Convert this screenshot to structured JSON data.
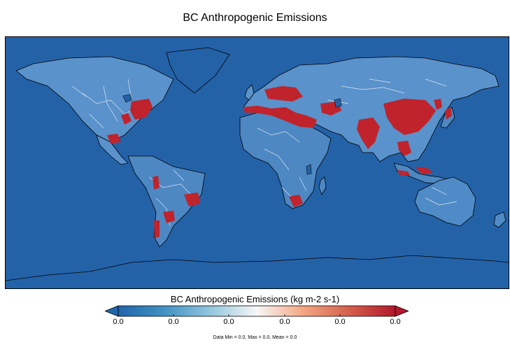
{
  "title": "BC Anthropogenic Emissions",
  "colorbar": {
    "label": "BC Anthropogenic Emissions (kg m-2 s-1)",
    "tick_labels": [
      "0.0",
      "0.0",
      "0.0",
      "0.0",
      "0.0",
      "0.0"
    ],
    "colormap": [
      "#2166ac",
      "#4393c3",
      "#92c5de",
      "#f7f7f7",
      "#f4a582",
      "#d6604d",
      "#b2182b"
    ],
    "extend_low_color": "#2166ac",
    "extend_high_color": "#b2182b"
  },
  "stats": "Data Min = 0.0, Max = 0.0, Mean = 0.0",
  "colors": {
    "background_field": "#2462a8",
    "low_emission": "#9cc4e4",
    "road_network": "#e8f1fa",
    "high_emission": "#c0232b",
    "coastline": "#000000"
  }
}
